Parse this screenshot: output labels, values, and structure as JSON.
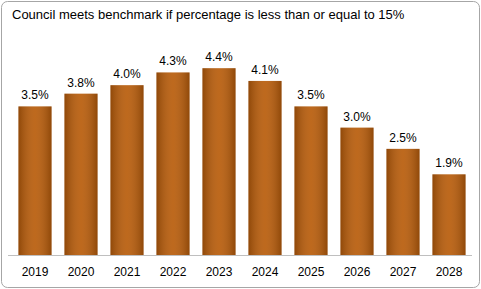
{
  "chart_data": {
    "type": "bar",
    "title": "Council meets benchmark if percentage is less than or equal to 15%",
    "categories": [
      "2019",
      "2020",
      "2021",
      "2022",
      "2023",
      "2024",
      "2025",
      "2026",
      "2027",
      "2028"
    ],
    "values": [
      3.5,
      3.8,
      4.0,
      4.3,
      4.4,
      4.1,
      3.5,
      3.0,
      2.5,
      1.9
    ],
    "value_labels": [
      "3.5%",
      "3.8%",
      "4.0%",
      "4.3%",
      "4.4%",
      "4.1%",
      "3.5%",
      "3.0%",
      "2.5%",
      "1.9%"
    ],
    "color": "#b85c0a",
    "ylim": [
      0,
      5.3
    ],
    "grid": false,
    "data_labels": true,
    "tick_labels": "x"
  }
}
